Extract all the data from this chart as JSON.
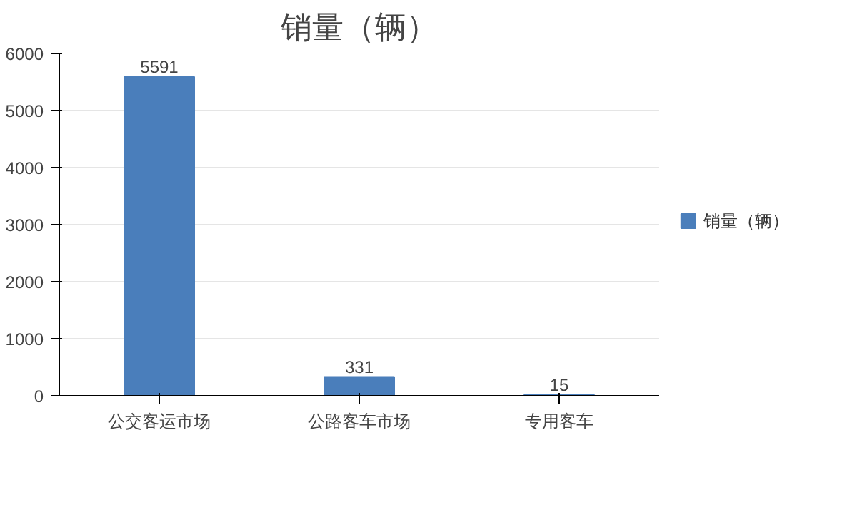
{
  "chart_data": {
    "type": "bar",
    "title": "销量（辆）",
    "categories": [
      "公交客运市场",
      "公路客车市场",
      "专用客车"
    ],
    "series": [
      {
        "name": "销量（辆）",
        "color": "#4a7ebb",
        "values": [
          5591,
          331,
          15
        ]
      }
    ],
    "ylim": [
      0,
      6000
    ],
    "yticks": [
      0,
      1000,
      2000,
      3000,
      4000,
      5000,
      6000
    ],
    "grid": "y",
    "legend": "right",
    "data_labels": true
  }
}
